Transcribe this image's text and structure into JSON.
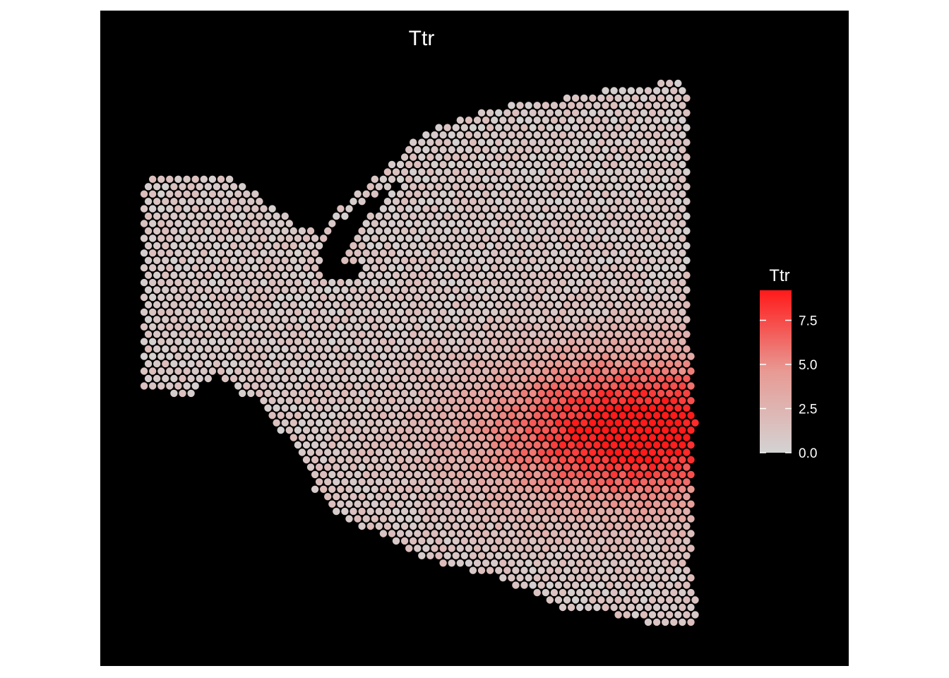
{
  "chart_data": {
    "type": "scatter",
    "title": "Ttr",
    "xlabel": "",
    "ylabel": "",
    "grid": false,
    "background": "#000000",
    "legend": {
      "title": "Ttr",
      "placement": "right",
      "kind": "colorbar",
      "ticks": [
        0.0,
        2.5,
        5.0,
        7.5
      ],
      "tick_labels": [
        "0.0",
        "2.5",
        "5.0",
        "7.5"
      ],
      "range": [
        0,
        9.2
      ]
    },
    "colors": {
      "low": "#d3d3d3",
      "high": "#ff1a1a",
      "background": "#000000",
      "panel_border": "#ffffff"
    },
    "spot_layout": "hexagonal spot grid covering a tissue section",
    "expression_hotspot": {
      "description": "highest Ttr expression in lower-right region",
      "max_value": 9.2
    }
  }
}
